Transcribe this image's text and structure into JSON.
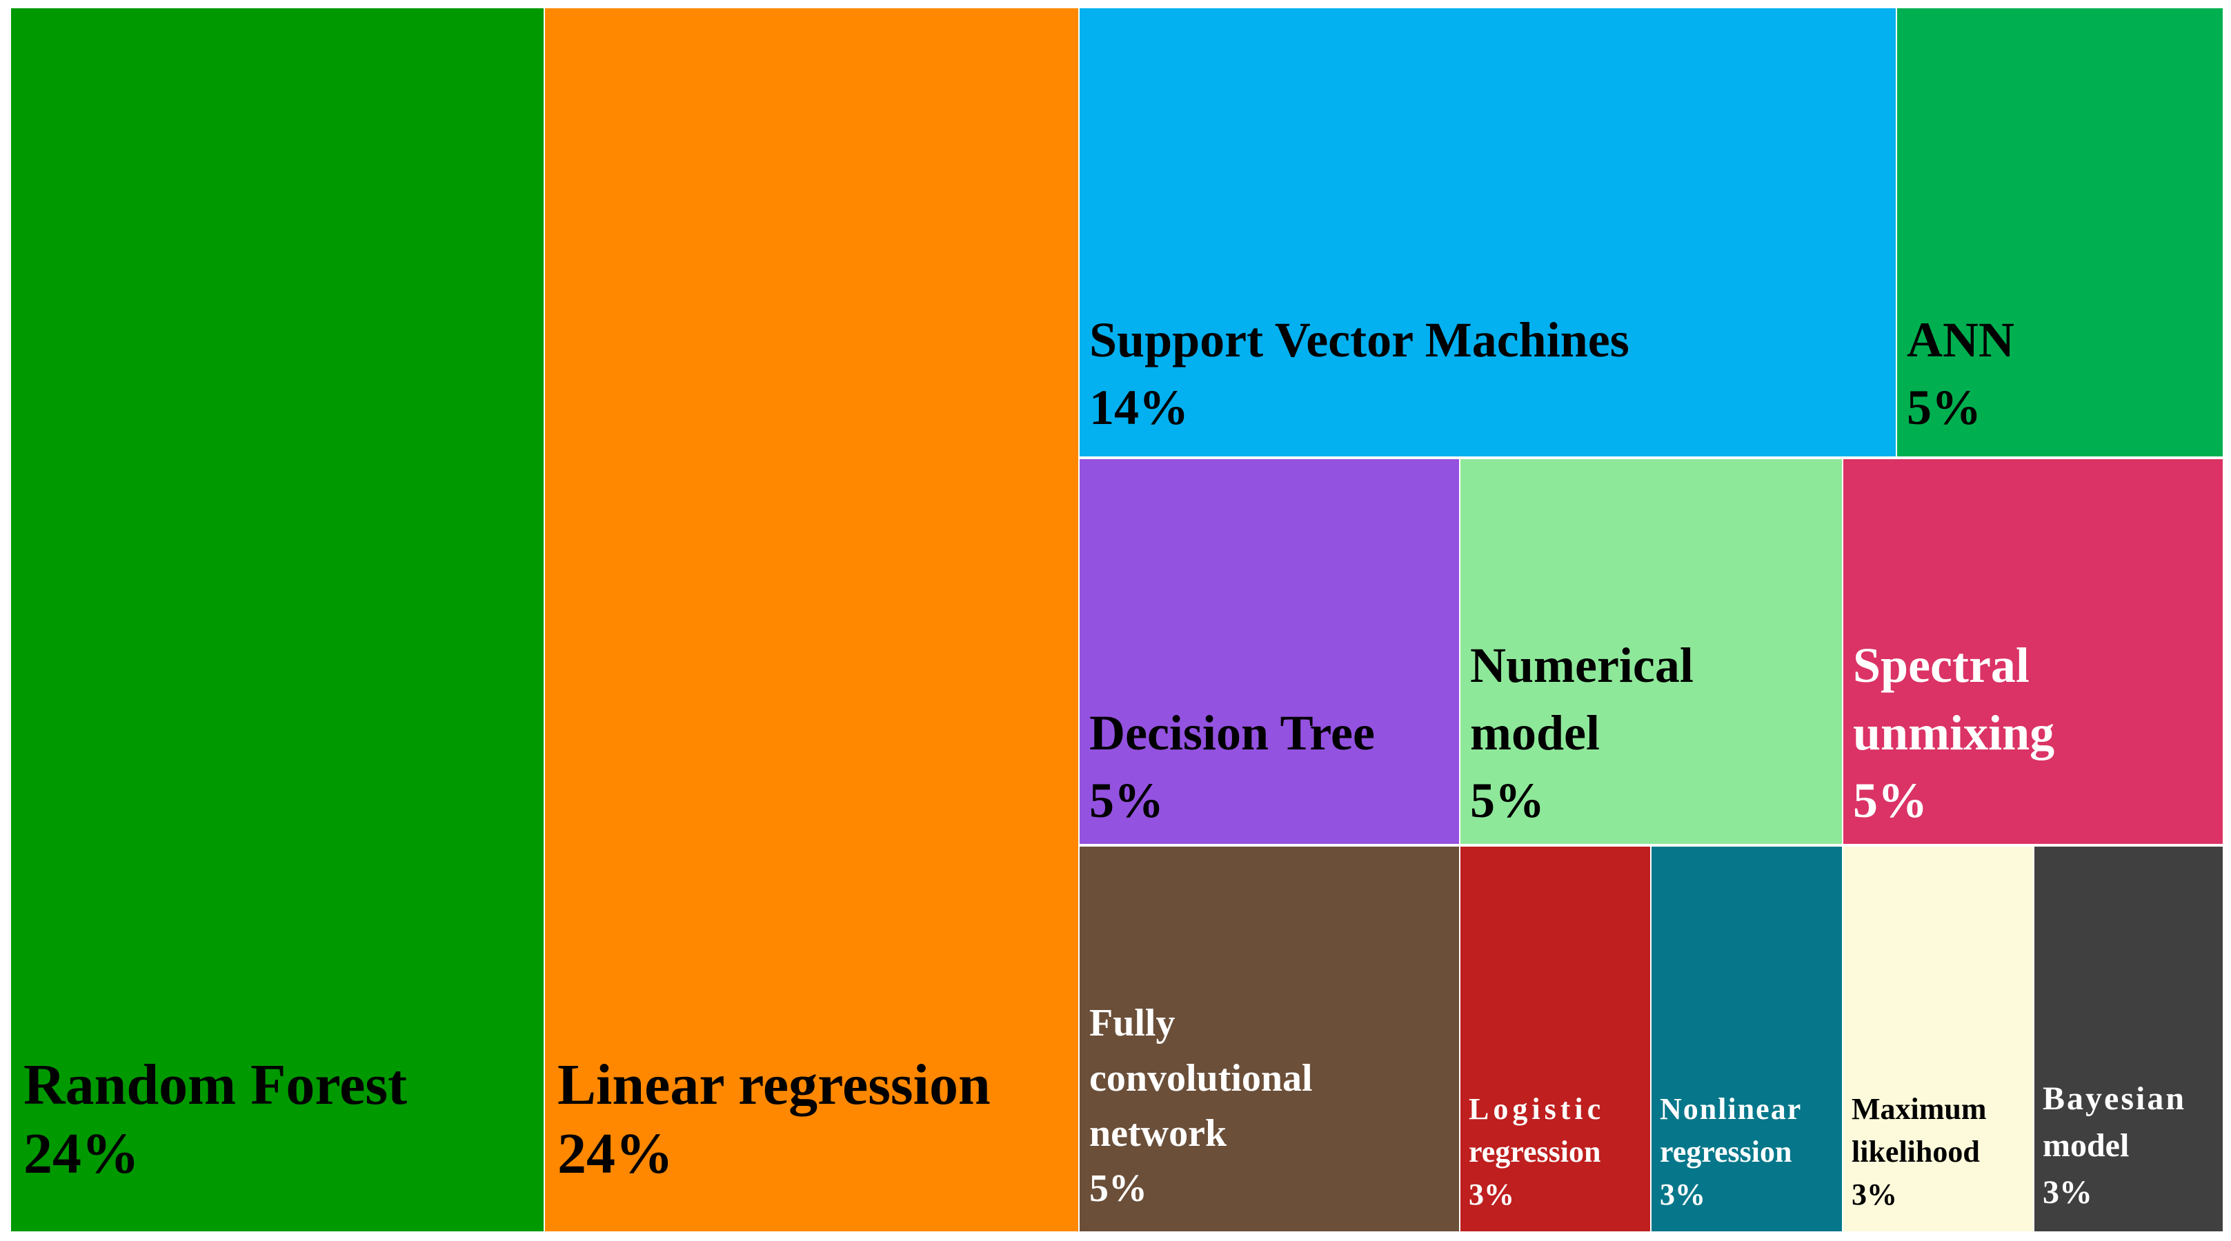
{
  "chart_data": {
    "type": "treemap",
    "title": "",
    "items": [
      {
        "name": "Random Forest",
        "value": 24,
        "value_label": "24%",
        "color": "#009900",
        "text_color": "#000000"
      },
      {
        "name": "Linear regression",
        "value": 24,
        "value_label": "24%",
        "color": "#FF8800",
        "text_color": "#000000"
      },
      {
        "name": "Support Vector Machines",
        "value": 14,
        "value_label": "14%",
        "color": "#03B0F0",
        "text_color": "#000000"
      },
      {
        "name": "ANN",
        "value": 5,
        "value_label": "5%",
        "color": "#00B050",
        "text_color": "#000000"
      },
      {
        "name": "Decision Tree",
        "value": 5,
        "value_label": "5%",
        "color": "#9452E0",
        "text_color": "#000000"
      },
      {
        "name": "Numerical model",
        "value": 5,
        "value_label": "5%",
        "color": "#8EE89A",
        "text_color": "#000000"
      },
      {
        "name": "Spectral unmixing",
        "value": 5,
        "value_label": "5%",
        "color": "#DB3365",
        "text_color": "#FFFFFF"
      },
      {
        "name": "Fully convolutional network",
        "value": 5,
        "value_label": "5%",
        "color": "#6B4F39",
        "text_color": "#FFFFFF"
      },
      {
        "name": "Logistic regression",
        "value": 3,
        "value_label": "3%",
        "color": "#BF1F1F",
        "text_color": "#FFFFFF"
      },
      {
        "name": "Nonlinear regression",
        "value": 3,
        "value_label": "3%",
        "color": "#06778A",
        "text_color": "#FFFFFF"
      },
      {
        "name": "Maximum likelihood",
        "value": 3,
        "value_label": "3%",
        "color": "#FDFADB",
        "text_color": "#000000"
      },
      {
        "name": "Bayesian model",
        "value": 3,
        "value_label": "3%",
        "color": "#404040",
        "text_color": "#FFFFFF"
      }
    ]
  }
}
